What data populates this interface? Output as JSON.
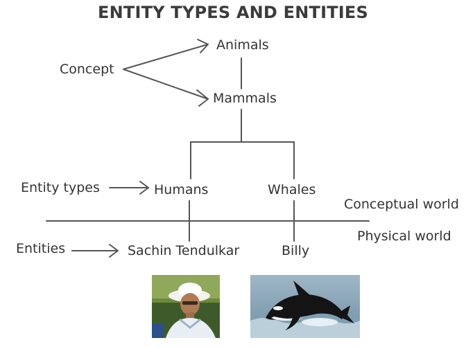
{
  "title": "ENTITY TYPES AND ENTITIES",
  "labels": {
    "concept": "Concept",
    "animals": "Animals",
    "mammals": "Mammals",
    "entity_types": "Entity types",
    "humans": "Humans",
    "whales": "Whales",
    "conceptual_world": "Conceptual world",
    "physical_world": "Physical world",
    "entities": "Entities",
    "sachin": "Sachin Tendulkar",
    "billy": "Billy"
  },
  "images": {
    "person": "cricketer-photo",
    "whale": "orca-photo"
  },
  "colors": {
    "text": "#333333",
    "line": "#555555"
  }
}
